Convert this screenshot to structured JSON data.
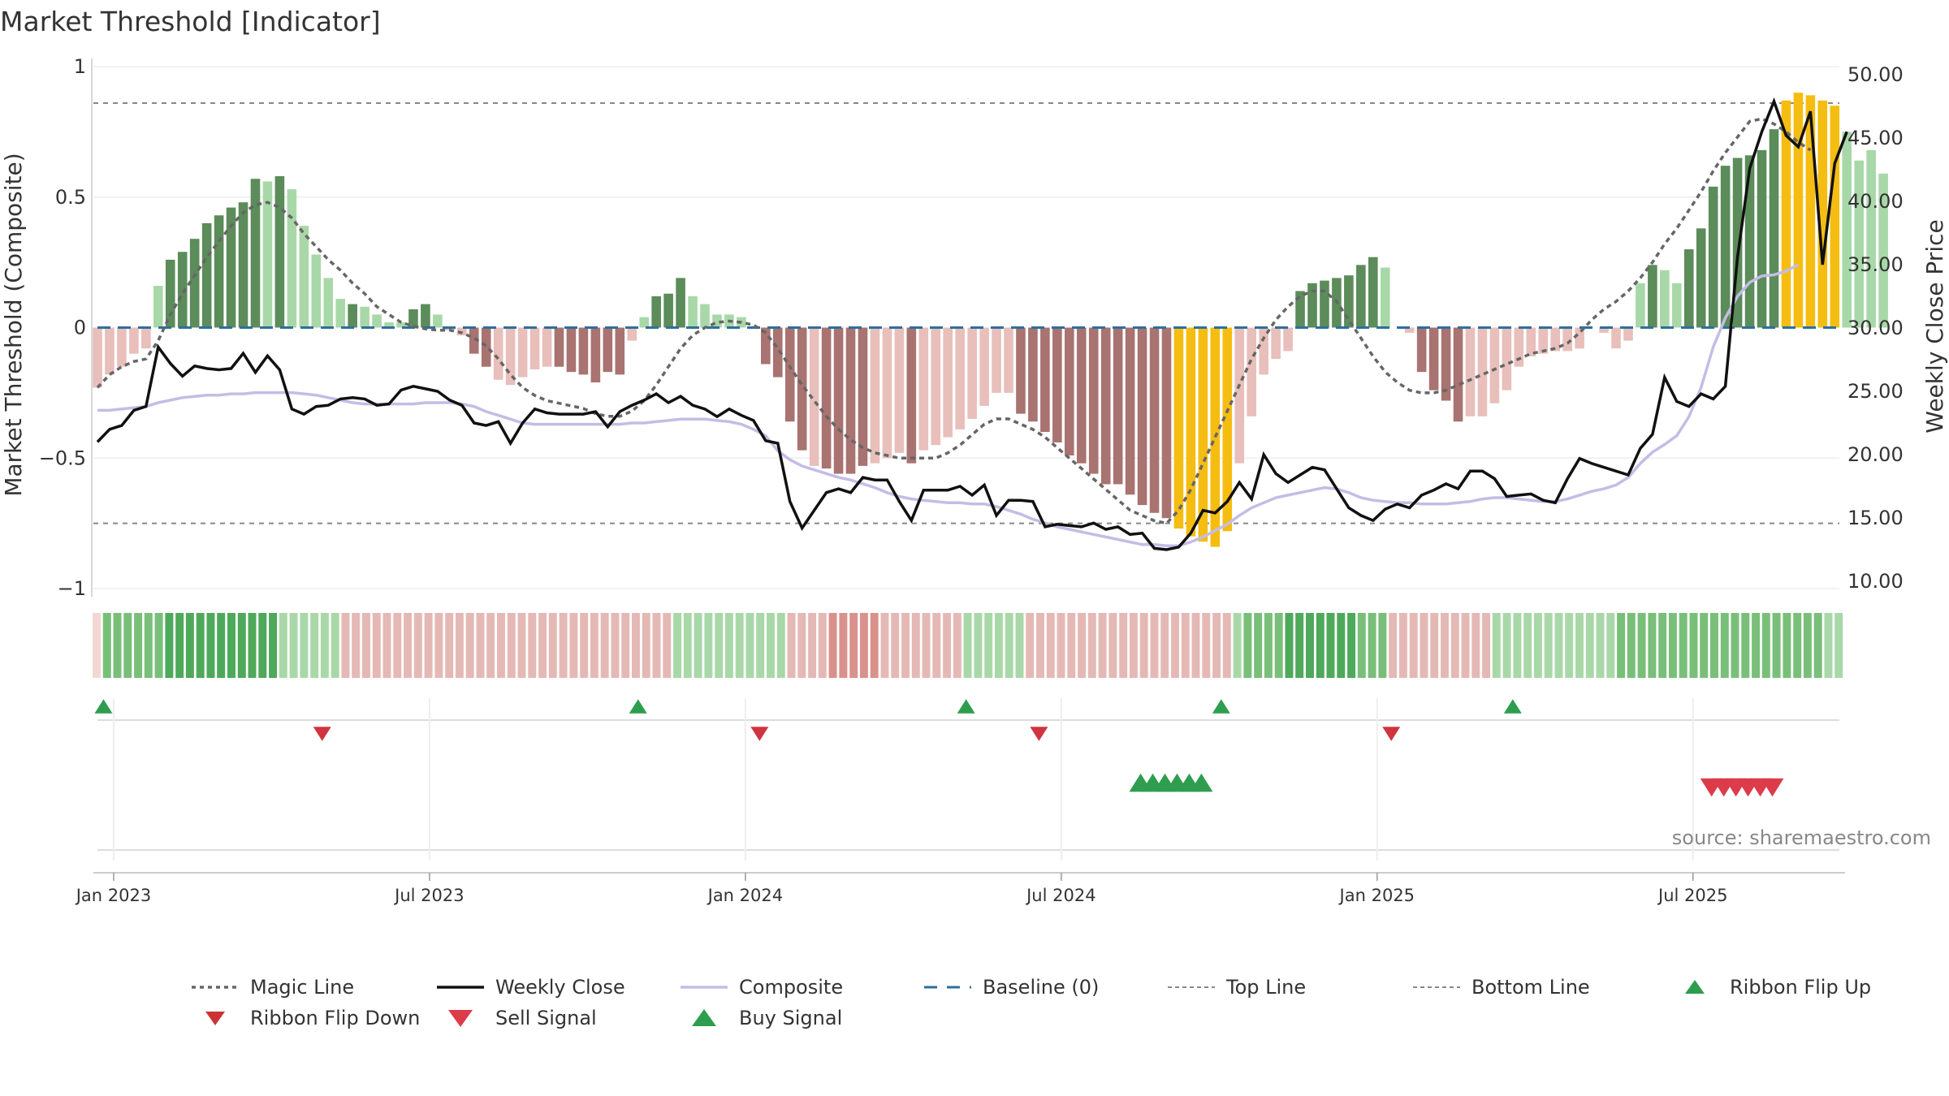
{
  "title": "Market Threshold [Indicator]",
  "source": "source: sharemaestro.com",
  "chart_data": {
    "type": "bar",
    "title": "Market Threshold [Indicator]",
    "ylabel_left": "Market Threshold (Composite)",
    "ylabel_right": "Weekly Close Price",
    "ylim_left": [
      -1,
      1
    ],
    "ylim_right": [
      10,
      50
    ],
    "yticks_left": [
      "1",
      "0.5",
      "0",
      "−0.5",
      "−1"
    ],
    "yticks_right": [
      "50.00",
      "45.00",
      "40.00",
      "35.00",
      "30.00",
      "25.00",
      "20.00",
      "15.00",
      "10.00"
    ],
    "x_ticks": [
      {
        "label": "Jan 2023",
        "week": 1
      },
      {
        "label": "Jul 2023",
        "week": 27
      },
      {
        "label": "Jan 2024",
        "week": 53
      },
      {
        "label": "Jul 2024",
        "week": 79
      },
      {
        "label": "Jan 2025",
        "week": 105
      },
      {
        "label": "Jul 2025",
        "week": 131
      }
    ],
    "top_line": 0.86,
    "bottom_line": -0.75,
    "baseline": 0,
    "grid": true,
    "colors": {
      "bull_dark": "#5b8c5a",
      "bull_light": "#a9d8a8",
      "bear_dark": "#a87370",
      "bear_light": "#e8bfbb",
      "extreme": "#f5bd12",
      "weekly_close": "#111111",
      "composite": "#c3bde6",
      "magic_line": "#666666",
      "baseline": "#2e6f9c",
      "buy": "#2e9e4e",
      "sell": "#d0353f"
    },
    "series": [
      {
        "name": "Magic Line",
        "values": [
          -0.23,
          -0.18,
          -0.15,
          -0.13,
          -0.12,
          -0.05,
          0.05,
          0.13,
          0.2,
          0.27,
          0.33,
          0.39,
          0.44,
          0.47,
          0.48,
          0.46,
          0.42,
          0.36,
          0.31,
          0.26,
          0.22,
          0.17,
          0.13,
          0.08,
          0.05,
          0.02,
          0.005,
          -0.005,
          -0.01,
          -0.01,
          -0.02,
          -0.04,
          -0.07,
          -0.12,
          -0.18,
          -0.23,
          -0.26,
          -0.28,
          -0.29,
          -0.3,
          -0.31,
          -0.33,
          -0.34,
          -0.34,
          -0.32,
          -0.28,
          -0.22,
          -0.15,
          -0.08,
          -0.03,
          0,
          0.02,
          0.025,
          0.02,
          0.01,
          -0.02,
          -0.08,
          -0.15,
          -0.22,
          -0.28,
          -0.34,
          -0.39,
          -0.43,
          -0.46,
          -0.48,
          -0.49,
          -0.5,
          -0.5,
          -0.5,
          -0.5,
          -0.48,
          -0.45,
          -0.41,
          -0.37,
          -0.35,
          -0.35,
          -0.37,
          -0.39,
          -0.42,
          -0.46,
          -0.5,
          -0.54,
          -0.58,
          -0.62,
          -0.66,
          -0.7,
          -0.72,
          -0.74,
          -0.75,
          -0.7,
          -0.62,
          -0.52,
          -0.42,
          -0.32,
          -0.22,
          -0.12,
          -0.04,
          0.03,
          0.08,
          0.12,
          0.14,
          0.14,
          0.1,
          0.03,
          -0.04,
          -0.11,
          -0.17,
          -0.21,
          -0.24,
          -0.25,
          -0.25,
          -0.24,
          -0.22,
          -0.2,
          -0.18,
          -0.16,
          -0.14,
          -0.12,
          -0.1,
          -0.09,
          -0.08,
          -0.06,
          -0.02,
          0.03,
          0.07,
          0.1,
          0.14,
          0.19,
          0.25,
          0.32,
          0.38,
          0.45,
          0.52,
          0.6,
          0.67,
          0.73,
          0.79,
          0.8,
          0.78,
          0.75,
          0.71,
          0.68
        ]
      },
      {
        "name": "Weekly Close",
        "values": [
          21,
          22,
          22.3,
          23.5,
          23.8,
          28.5,
          27.2,
          26.2,
          27,
          26.8,
          26.7,
          26.8,
          28,
          26.5,
          27.8,
          26.7,
          23.6,
          23.2,
          23.8,
          23.9,
          24.4,
          24.5,
          24.4,
          23.9,
          24,
          25.1,
          25.4,
          25.2,
          25,
          24.3,
          23.9,
          22.5,
          22.3,
          22.6,
          20.9,
          22.5,
          23.6,
          23.3,
          23.2,
          23.2,
          23.2,
          23.4,
          22.2,
          23.4,
          23.9,
          24.3,
          24.8,
          24.1,
          24.6,
          23.9,
          23.6,
          23,
          23.6,
          23.1,
          22.7,
          21.1,
          20.9,
          16.3,
          14.2,
          15.6,
          17,
          17.3,
          17,
          18.2,
          18,
          18,
          16.3,
          14.8,
          17.2,
          17.2,
          17.2,
          17.5,
          16.8,
          17.6,
          15.2,
          16.4,
          16.4,
          16.3,
          14.3,
          14.5,
          14.4,
          14.3,
          14.6,
          14.1,
          14.3,
          13.7,
          13.8,
          12.6,
          12.5,
          12.7,
          13.8,
          15.6,
          15.4,
          16.3,
          17.8,
          16.5,
          20,
          18.5,
          17.8,
          18.4,
          19,
          18.8,
          17.3,
          15.8,
          15.2,
          14.8,
          15.7,
          16.1,
          15.8,
          16.8,
          17.2,
          17.7,
          17.3,
          18.7,
          18.7,
          18.1,
          16.7,
          16.8,
          16.9,
          16.4,
          16.2,
          18.1,
          19.7,
          19.3,
          19,
          18.7,
          18.4,
          20.5,
          21.6,
          26.1,
          24.2,
          23.8,
          24.8,
          24.4,
          25.4,
          35.6,
          42.6,
          45.5,
          47.9,
          45.2,
          44.3,
          47.1,
          35,
          43,
          45.5
        ]
      },
      {
        "name": "Composite",
        "values": [
          23.5,
          23.5,
          23.6,
          23.7,
          23.8,
          24.1,
          24.3,
          24.5,
          24.6,
          24.7,
          24.7,
          24.8,
          24.8,
          24.9,
          24.9,
          24.9,
          24.9,
          24.8,
          24.7,
          24.5,
          24.3,
          24.1,
          24,
          24,
          24,
          24,
          24,
          24.1,
          24.1,
          24.1,
          24,
          23.8,
          23.4,
          23.1,
          22.8,
          22.5,
          22.4,
          22.4,
          22.4,
          22.4,
          22.4,
          22.4,
          22.4,
          22.4,
          22.5,
          22.5,
          22.6,
          22.7,
          22.8,
          22.8,
          22.8,
          22.7,
          22.6,
          22.4,
          22,
          21.5,
          20.3,
          19.6,
          19.1,
          18.8,
          18.5,
          18.2,
          18,
          17.7,
          17.4,
          17,
          16.7,
          16.5,
          16.4,
          16.3,
          16.2,
          16.2,
          16.1,
          16.1,
          15.9,
          15.6,
          15.3,
          14.9,
          14.6,
          14.3,
          14.1,
          13.9,
          13.7,
          13.5,
          13.3,
          13.1,
          12.9,
          12.9,
          12.8,
          12.8,
          13.1,
          13.5,
          14,
          14.5,
          15.2,
          15.8,
          16.2,
          16.6,
          16.8,
          17,
          17.2,
          17.4,
          17.3,
          17,
          16.6,
          16.4,
          16.3,
          16.2,
          16.2,
          16.1,
          16.1,
          16.1,
          16.2,
          16.3,
          16.5,
          16.6,
          16.6,
          16.5,
          16.4,
          16.3,
          16.3,
          16.5,
          16.8,
          17.1,
          17.3,
          17.6,
          18.2,
          19.3,
          20.2,
          20.8,
          21.5,
          23,
          25.3,
          28.5,
          30.8,
          32.5,
          33.6,
          34.1,
          34.2,
          34.5,
          35
        ]
      },
      {
        "name": "Bars",
        "values": [
          -0.23,
          -0.18,
          -0.15,
          -0.1,
          -0.08,
          0.16,
          0.26,
          0.29,
          0.34,
          0.4,
          0.43,
          0.46,
          0.48,
          0.57,
          0.56,
          0.58,
          0.53,
          0.39,
          0.28,
          0.19,
          0.11,
          0.09,
          0.08,
          0.05,
          0.02,
          0.02,
          0.07,
          0.09,
          0.05,
          -0.01,
          -0.03,
          -0.1,
          -0.15,
          -0.2,
          -0.22,
          -0.19,
          -0.16,
          -0.15,
          -0.15,
          -0.17,
          -0.18,
          -0.21,
          -0.17,
          -0.18,
          -0.05,
          0.04,
          0.12,
          0.13,
          0.19,
          0.12,
          0.09,
          0.05,
          0.05,
          0.04,
          0,
          -0.14,
          -0.19,
          -0.36,
          -0.47,
          -0.53,
          -0.54,
          -0.56,
          -0.56,
          -0.53,
          -0.52,
          -0.5,
          -0.48,
          -0.52,
          -0.47,
          -0.45,
          -0.42,
          -0.39,
          -0.35,
          -0.3,
          -0.25,
          -0.25,
          -0.33,
          -0.36,
          -0.4,
          -0.44,
          -0.49,
          -0.52,
          -0.56,
          -0.6,
          -0.6,
          -0.64,
          -0.68,
          -0.71,
          -0.73,
          -0.77,
          -0.8,
          -0.82,
          -0.84,
          -0.78,
          -0.52,
          -0.34,
          -0.18,
          -0.12,
          -0.09,
          0.14,
          0.17,
          0.18,
          0.19,
          0.2,
          0.24,
          0.27,
          0.23,
          0,
          -0.02,
          -0.17,
          -0.24,
          -0.28,
          -0.36,
          -0.34,
          -0.34,
          -0.29,
          -0.24,
          -0.15,
          -0.11,
          -0.1,
          -0.09,
          -0.09,
          -0.08,
          0,
          -0.02,
          -0.08,
          -0.05,
          0.17,
          0.24,
          0.22,
          0.17,
          0.3,
          0.38,
          0.54,
          0.62,
          0.65,
          0.66,
          0.68,
          0.76,
          0.87,
          0.9,
          0.89,
          0.87,
          0.85,
          0.75,
          0.64,
          0.68,
          0.59
        ]
      }
    ],
    "bar_colors": [
      "bl",
      "bl",
      "bl",
      "bl",
      "bl",
      "gl",
      "gd",
      "gd",
      "gd",
      "gd",
      "gd",
      "gd",
      "gd",
      "gd",
      "gl",
      "gd",
      "gl",
      "gl",
      "gl",
      "gl",
      "gl",
      "gd",
      "gl",
      "gl",
      "gl",
      "gl",
      "gd",
      "gd",
      "gl",
      "bl",
      "bl",
      "bd",
      "bd",
      "bl",
      "bl",
      "bl",
      "bl",
      "bl",
      "bd",
      "bd",
      "bd",
      "bd",
      "bd",
      "bd",
      "bl",
      "gl",
      "gd",
      "gd",
      "gd",
      "gl",
      "gl",
      "gl",
      "gl",
      "gl",
      "gl",
      "bd",
      "bd",
      "bd",
      "bd",
      "bl",
      "bd",
      "bd",
      "bd",
      "bd",
      "bl",
      "bl",
      "bl",
      "bd",
      "bl",
      "bl",
      "bl",
      "bl",
      "bl",
      "bl",
      "bl",
      "bl",
      "bd",
      "bd",
      "bd",
      "bd",
      "bd",
      "bd",
      "bd",
      "bd",
      "bd",
      "bd",
      "bd",
      "bd",
      "bd",
      "ex",
      "ex",
      "ex",
      "ex",
      "ex",
      "bl",
      "bl",
      "bl",
      "bl",
      "bl",
      "gd",
      "gd",
      "gd",
      "gd",
      "gd",
      "gd",
      "gd",
      "gl",
      "bl",
      "bl",
      "bd",
      "bd",
      "bd",
      "bd",
      "bl",
      "bl",
      "bl",
      "bl",
      "bl",
      "bl",
      "bl",
      "bl",
      "bl",
      "bl",
      "bd",
      "bl",
      "bl",
      "bl",
      "gl",
      "gd",
      "gl",
      "gl",
      "gd",
      "gd",
      "gd",
      "gd",
      "gd",
      "gd",
      "gd",
      "gd",
      "ex",
      "ex",
      "ex",
      "ex",
      "ex",
      "gl",
      "gl",
      "gl",
      "gl"
    ],
    "ribbon": [
      "bx",
      "g2",
      "g2",
      "g2",
      "g2",
      "g2",
      "g2",
      "g3",
      "g3",
      "g3",
      "g3",
      "g3",
      "g3",
      "g3",
      "g3",
      "g3",
      "g3",
      "g3",
      "g1",
      "g1",
      "g1",
      "g1",
      "g1",
      "g1",
      "b1",
      "b1",
      "b1",
      "b1",
      "b1",
      "b1",
      "b1",
      "b1",
      "b1",
      "b1",
      "b1",
      "b1",
      "b1",
      "b1",
      "b1",
      "b1",
      "b1",
      "b1",
      "b1",
      "b1",
      "b1",
      "b1",
      "b1",
      "b1",
      "b1",
      "b1",
      "b1",
      "b1",
      "b1",
      "b1",
      "b1",
      "b1",
      "g1",
      "g1",
      "g1",
      "g1",
      "g1",
      "g1",
      "g1",
      "g1",
      "g1",
      "g1",
      "g1",
      "b1",
      "b1",
      "b1",
      "b1",
      "b2",
      "b2",
      "b2",
      "b2",
      "b2",
      "b1",
      "b1",
      "b1",
      "b1",
      "b1",
      "b1",
      "b1",
      "b1",
      "g1",
      "g1",
      "g1",
      "g1",
      "g1",
      "g1",
      "b1",
      "b1",
      "b1",
      "b1",
      "b1",
      "b1",
      "b1",
      "b1",
      "b1",
      "b1",
      "b1",
      "b1",
      "b1",
      "b1",
      "b1",
      "b1",
      "b1",
      "b1",
      "b1",
      "b1",
      "g1",
      "g2",
      "g2",
      "g2",
      "g2",
      "g3",
      "g3",
      "g3",
      "g3",
      "g3",
      "g3",
      "g3",
      "g2",
      "g2",
      "g2",
      "b1",
      "b1",
      "b1",
      "b1",
      "b1",
      "b1",
      "b1",
      "b1",
      "b1",
      "b1",
      "g1",
      "g1",
      "g1",
      "g1",
      "g1",
      "g1",
      "g1",
      "g1",
      "g1",
      "g1",
      "g1",
      "g1",
      "g2",
      "g2",
      "g2",
      "g2",
      "g2",
      "g2",
      "g2",
      "g2",
      "g2",
      "g2",
      "g2",
      "g2",
      "g2",
      "g2",
      "g2",
      "g2",
      "g2",
      "g2",
      "g2",
      "g2",
      "g1",
      "g1"
    ],
    "ribbon_flip_up": [
      0.5,
      44.5,
      71.5,
      92.5,
      116.5
    ],
    "ribbon_flip_down": [
      18.5,
      54.5,
      77.5,
      106.5
    ],
    "buy_signals": [
      86,
      87,
      88,
      89,
      90,
      91
    ],
    "sell_signals": [
      133,
      134,
      135,
      136,
      137,
      138
    ],
    "legend": [
      {
        "label": "Magic Line",
        "kind": "dotted"
      },
      {
        "label": "Weekly Close",
        "kind": "solid"
      },
      {
        "label": "Composite",
        "kind": "composite"
      },
      {
        "label": "Baseline (0)",
        "kind": "dashed"
      },
      {
        "label": "Top Line",
        "kind": "thin-dotted"
      },
      {
        "label": "Bottom Line",
        "kind": "thin-dotted"
      },
      {
        "label": "Ribbon Flip Up",
        "kind": "tri-up-small"
      },
      {
        "label": "Ribbon Flip Down",
        "kind": "tri-down-small"
      },
      {
        "label": "Sell Signal",
        "kind": "tri-down-big"
      },
      {
        "label": "Buy Signal",
        "kind": "tri-up-big"
      }
    ]
  }
}
